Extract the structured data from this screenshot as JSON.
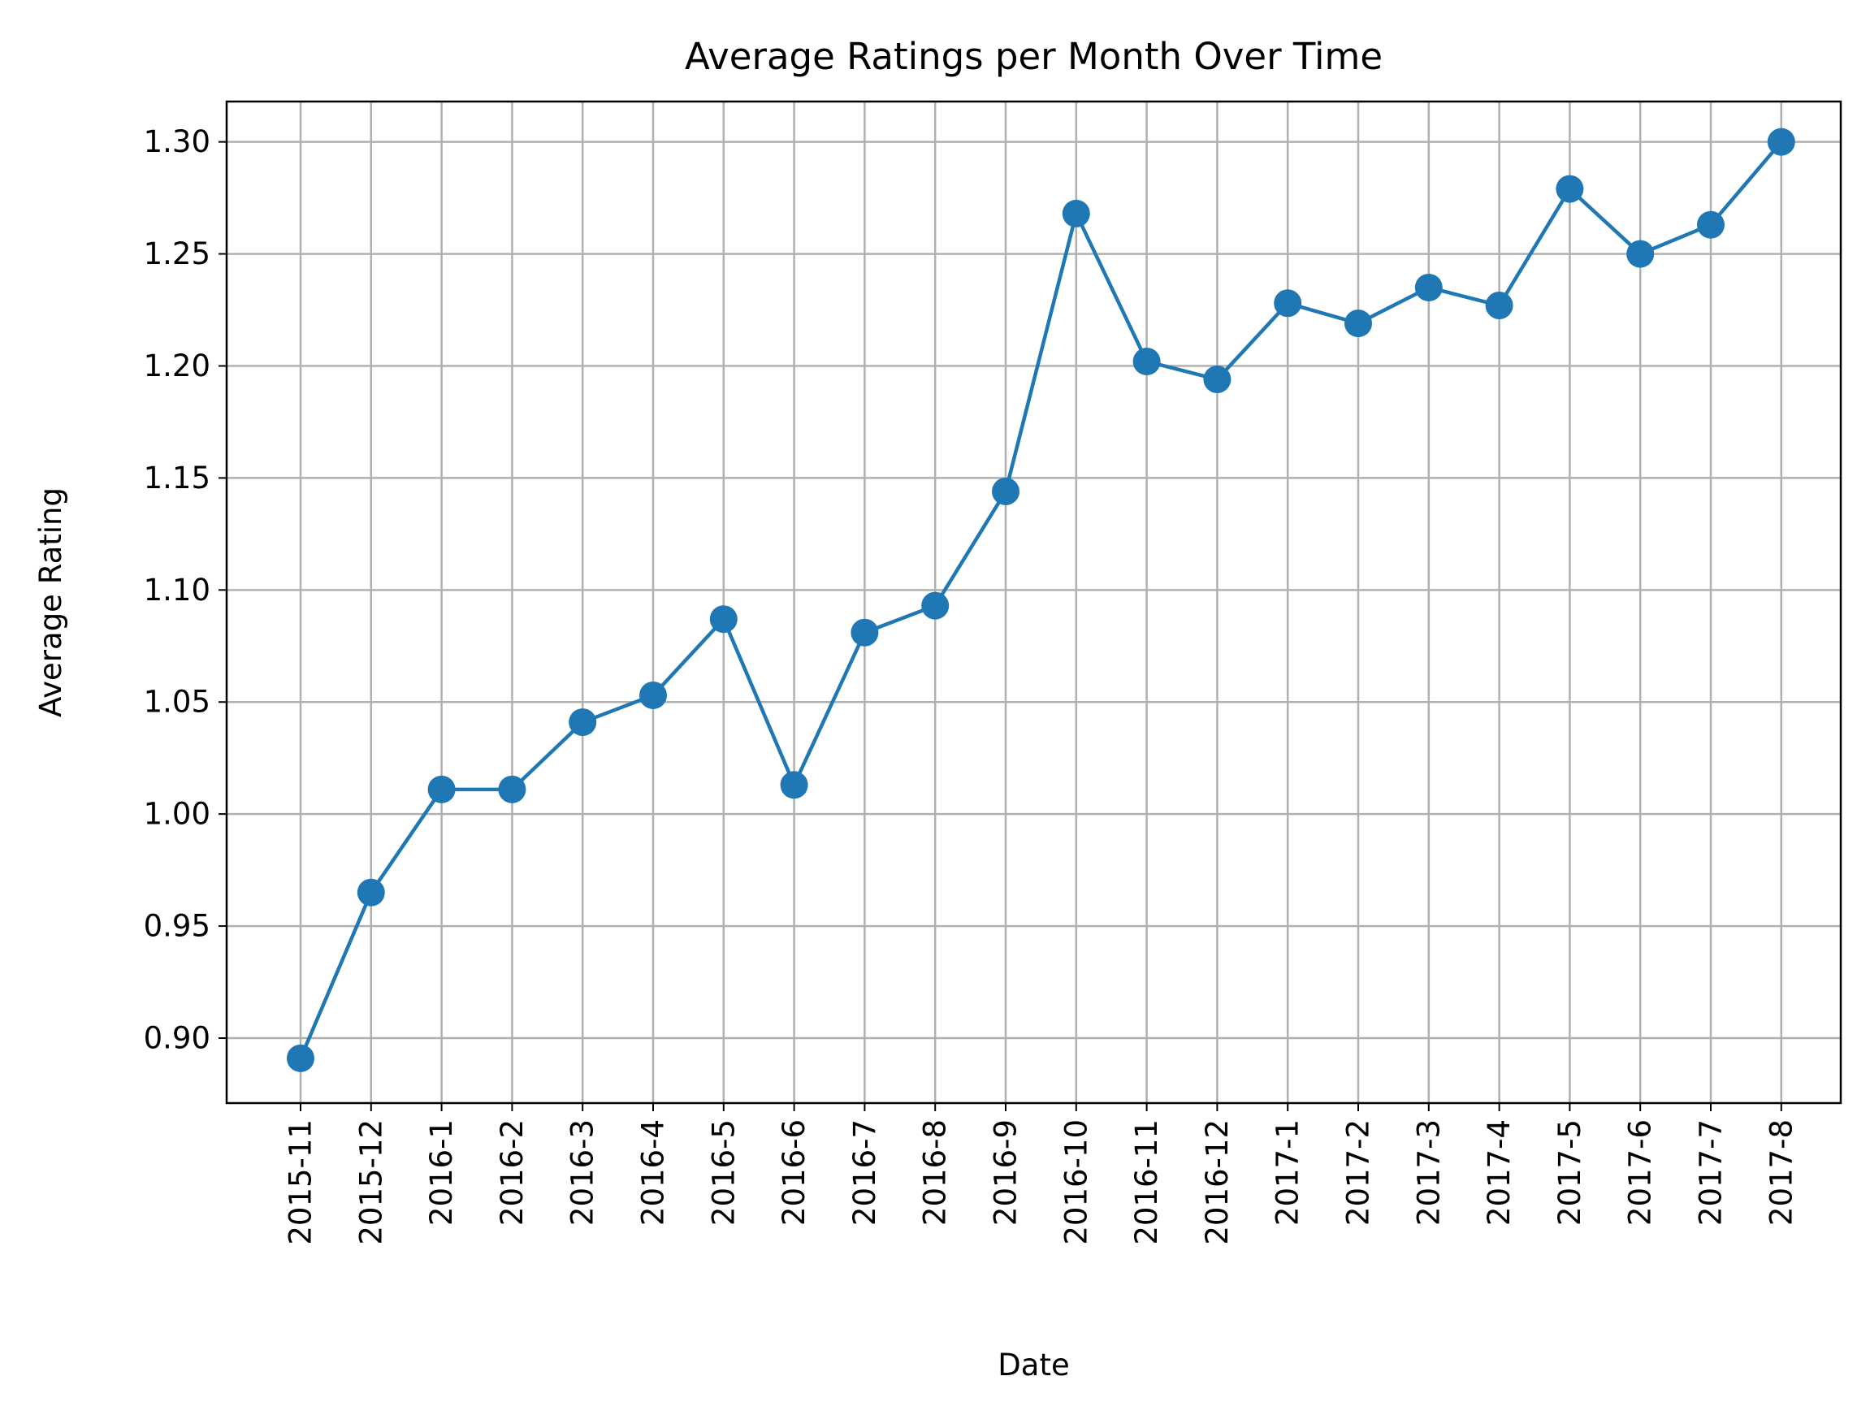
{
  "chart_data": {
    "type": "line",
    "title": "Average Ratings per Month Over Time",
    "xlabel": "Date",
    "ylabel": "Average Rating",
    "categories": [
      "2015-11",
      "2015-12",
      "2016-1",
      "2016-2",
      "2016-3",
      "2016-4",
      "2016-5",
      "2016-6",
      "2016-7",
      "2016-8",
      "2016-9",
      "2016-10",
      "2016-11",
      "2016-12",
      "2017-1",
      "2017-2",
      "2017-3",
      "2017-4",
      "2017-5",
      "2017-6",
      "2017-7",
      "2017-8"
    ],
    "values": [
      0.891,
      0.965,
      1.011,
      1.011,
      1.041,
      1.053,
      1.087,
      1.013,
      1.081,
      1.093,
      1.144,
      1.268,
      1.202,
      1.194,
      1.228,
      1.219,
      1.235,
      1.227,
      1.279,
      1.25,
      1.263,
      1.3
    ],
    "ylim": [
      0.871,
      1.318
    ],
    "yticks": [
      "0.90",
      "0.95",
      "1.00",
      "1.05",
      "1.10",
      "1.15",
      "1.20",
      "1.25",
      "1.30"
    ],
    "grid": true,
    "marker": "circle",
    "color": "#1f77b4"
  }
}
